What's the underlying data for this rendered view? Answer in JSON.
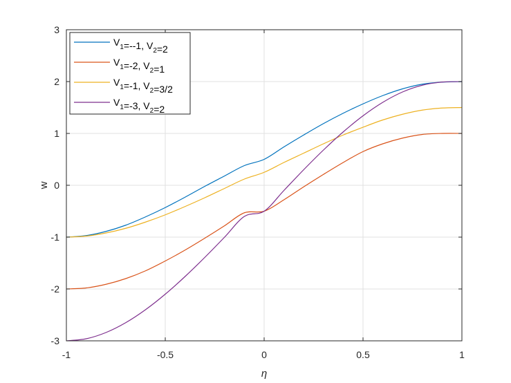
{
  "chart_data": {
    "type": "line",
    "xlabel": "η",
    "ylabel": "w",
    "xlim": [
      -1,
      1
    ],
    "ylim": [
      -3,
      3
    ],
    "xticks": [
      "-1",
      "-0.5",
      "0",
      "0.5",
      "1"
    ],
    "yticks": [
      "3",
      "2",
      "1",
      "0",
      "-1",
      "-2",
      "-3"
    ],
    "grid": true,
    "legend_position": "top-left",
    "x": [
      -1,
      -0.9,
      -0.8,
      -0.7,
      -0.6,
      -0.5,
      -0.4,
      -0.3,
      -0.2,
      -0.1,
      0,
      0.1,
      0.2,
      0.3,
      0.4,
      0.5,
      0.6,
      0.7,
      0.8,
      0.9,
      1
    ],
    "series": [
      {
        "name": "V1=--1, V2=2",
        "legend_main": [
          "V",
          "=--1, V",
          "=2"
        ],
        "legend_subs": [
          "1",
          "2"
        ],
        "color": "#0072BD",
        "values": [
          -1,
          -0.97,
          -0.89,
          -0.77,
          -0.61,
          -0.43,
          -0.23,
          -0.02,
          0.18,
          0.38,
          0.5,
          0.74,
          0.97,
          1.19,
          1.39,
          1.57,
          1.73,
          1.86,
          1.95,
          1.99,
          2
        ]
      },
      {
        "name": "V1=-2, V2=1",
        "legend_main": [
          "V",
          "=-2, V",
          "=1"
        ],
        "legend_subs": [
          "1",
          "2"
        ],
        "color": "#D95319",
        "values": [
          -2,
          -1.98,
          -1.91,
          -1.8,
          -1.65,
          -1.46,
          -1.25,
          -1.02,
          -0.78,
          -0.53,
          -0.5,
          -0.28,
          -0.03,
          0.21,
          0.44,
          0.65,
          0.8,
          0.91,
          0.98,
          1.0,
          1
        ]
      },
      {
        "name": "V1=-1, V2=3/2",
        "legend_main": [
          "V",
          "=-1, V",
          "=3/2"
        ],
        "legend_subs": [
          "1",
          "2"
        ],
        "color": "#EDB120",
        "values": [
          -1,
          -0.98,
          -0.92,
          -0.83,
          -0.71,
          -0.57,
          -0.41,
          -0.24,
          -0.06,
          0.12,
          0.25,
          0.44,
          0.62,
          0.8,
          0.97,
          1.12,
          1.26,
          1.37,
          1.45,
          1.49,
          1.5
        ]
      },
      {
        "name": "V1=-3, V2=2",
        "legend_main": [
          "V",
          "=-3, V",
          "=2"
        ],
        "legend_subs": [
          "1",
          "2"
        ],
        "color": "#7E2F8E",
        "values": [
          -3,
          -2.96,
          -2.84,
          -2.65,
          -2.4,
          -2.1,
          -1.76,
          -1.39,
          -1.0,
          -0.6,
          -0.5,
          -0.1,
          0.3,
          0.68,
          1.03,
          1.34,
          1.6,
          1.8,
          1.93,
          1.99,
          2
        ]
      }
    ]
  }
}
